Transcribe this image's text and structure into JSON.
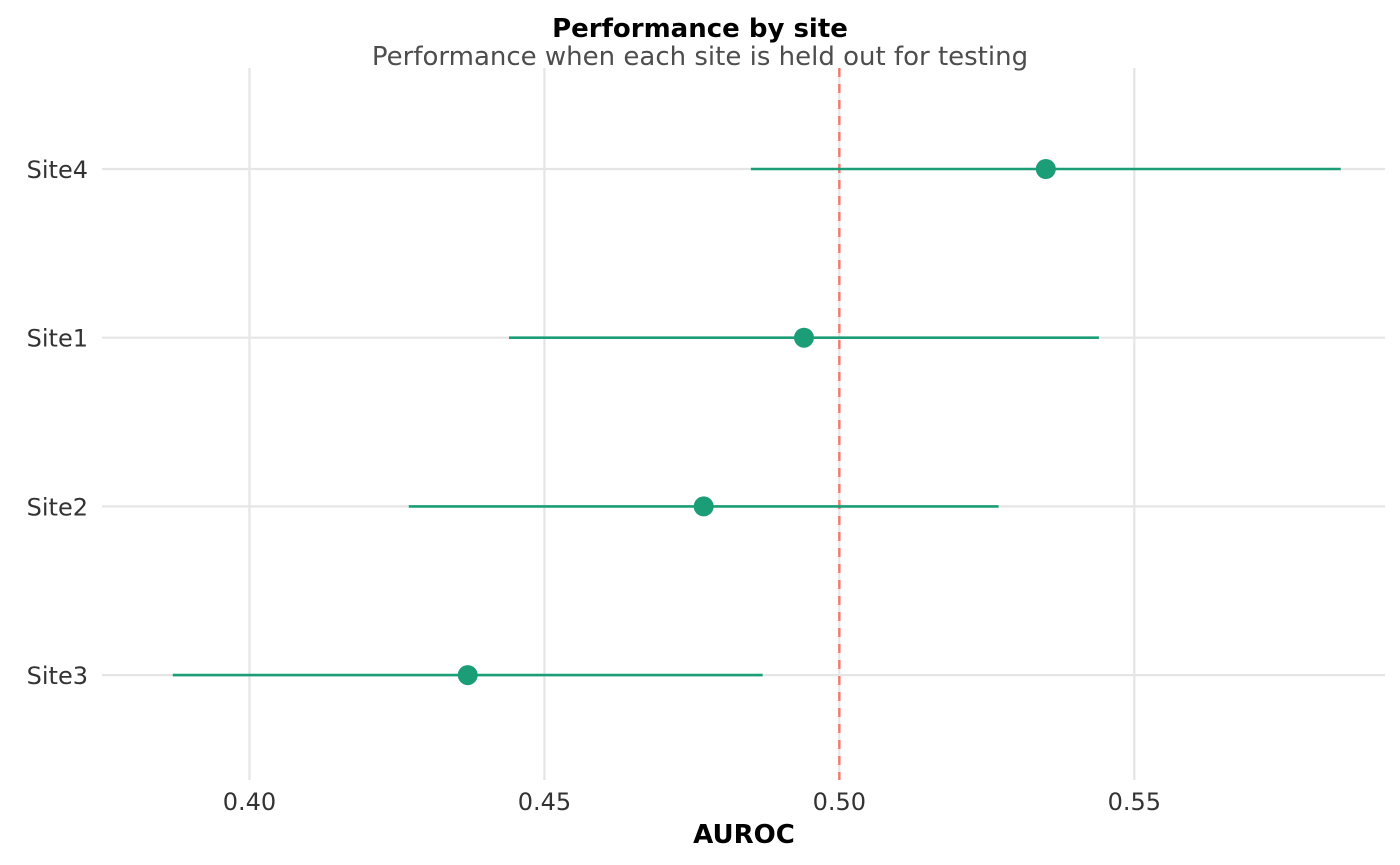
{
  "chart_data": {
    "type": "scatter",
    "title": "Performance by site",
    "subtitle": "Performance when each site is held out for testing",
    "xlabel": "AUROC",
    "ylabel": "",
    "xlim": [
      0.375,
      0.5925
    ],
    "xticks": [
      0.4,
      0.45,
      0.5,
      0.55
    ],
    "xtick_labels": [
      "0.40",
      "0.45",
      "0.50",
      "0.55"
    ],
    "categories": [
      "Site4",
      "Site1",
      "Site2",
      "Site3"
    ],
    "points": [
      {
        "site": "Site4",
        "auroc": 0.535,
        "ci_low": 0.485,
        "ci_high": 0.585
      },
      {
        "site": "Site1",
        "auroc": 0.494,
        "ci_low": 0.444,
        "ci_high": 0.544
      },
      {
        "site": "Site2",
        "auroc": 0.477,
        "ci_low": 0.427,
        "ci_high": 0.527
      },
      {
        "site": "Site3",
        "auroc": 0.437,
        "ci_low": 0.387,
        "ci_high": 0.487
      }
    ],
    "reference_line": {
      "x": 0.5,
      "style": "dashed",
      "color": "#f8766d"
    },
    "point_color": "#1b9e77",
    "grid": true,
    "legend": "none"
  }
}
